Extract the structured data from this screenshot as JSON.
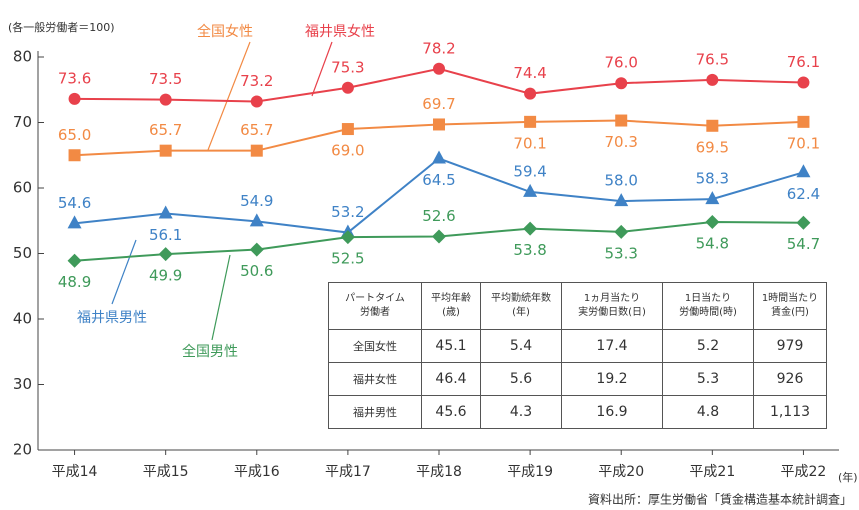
{
  "chart_data": {
    "type": "line",
    "subtitle": "(各一般労働者＝100)",
    "categories": [
      "平成14",
      "平成15",
      "平成16",
      "平成17",
      "平成18",
      "平成19",
      "平成20",
      "平成21",
      "平成22"
    ],
    "x_unit": "(年)",
    "ylim": [
      20,
      80
    ],
    "yticks": [
      20,
      30,
      40,
      50,
      60,
      70,
      80
    ],
    "grid": false,
    "series": [
      {
        "name": "福井県女性",
        "color": "#e8414b",
        "marker": "circle",
        "values": [
          73.6,
          73.5,
          73.2,
          75.3,
          78.2,
          74.4,
          76.0,
          76.5,
          76.1
        ],
        "value_labels": [
          "73.6",
          "73.5",
          "73.2",
          "75.3",
          "78.2",
          "74.4",
          "76.0",
          "76.5",
          "76.1"
        ]
      },
      {
        "name": "全国女性",
        "color": "#f28a44",
        "marker": "square",
        "values": [
          65.0,
          65.7,
          65.7,
          69.0,
          69.7,
          70.1,
          70.3,
          69.5,
          70.1
        ],
        "value_labels": [
          "65.0",
          "65.7",
          "65.7",
          "69.0",
          "69.7",
          "70.1",
          "70.3",
          "69.5",
          "70.1"
        ]
      },
      {
        "name": "福井県男性",
        "color": "#3f82c6",
        "marker": "triangle",
        "values": [
          54.6,
          56.1,
          54.9,
          53.2,
          64.5,
          59.4,
          58.0,
          58.3,
          62.4
        ],
        "value_labels": [
          "54.6",
          "56.1",
          "54.9",
          "53.2",
          "64.5",
          "59.4",
          "58.0",
          "58.3",
          "62.4"
        ]
      },
      {
        "name": "全国男性",
        "color": "#3f9a5a",
        "marker": "diamond",
        "values": [
          48.9,
          49.9,
          50.6,
          52.5,
          52.6,
          53.8,
          53.3,
          54.8,
          54.7
        ],
        "value_labels": [
          "48.9",
          "49.9",
          "50.6",
          "52.5",
          "52.6",
          "53.8",
          "53.3",
          "54.8",
          "54.7"
        ]
      }
    ],
    "source": "資料出所：厚生労働省「賃金構造基本統計調査」"
  },
  "table": {
    "header": [
      "パートタイム\n労働者",
      "平均年齢\n(歳)",
      "平均勤続年数\n(年)",
      "1ヵ月当たり\n実労働日数(日)",
      "1日当たり\n労働時間(時)",
      "1時間当たり\n賃金(円)"
    ],
    "rows": [
      [
        "全国女性",
        "45.1",
        "5.4",
        "17.4",
        "5.2",
        "979"
      ],
      [
        "福井女性",
        "46.4",
        "5.6",
        "19.2",
        "5.3",
        "926"
      ],
      [
        "福井男性",
        "45.6",
        "4.3",
        "16.9",
        "4.8",
        "1,113"
      ]
    ]
  }
}
